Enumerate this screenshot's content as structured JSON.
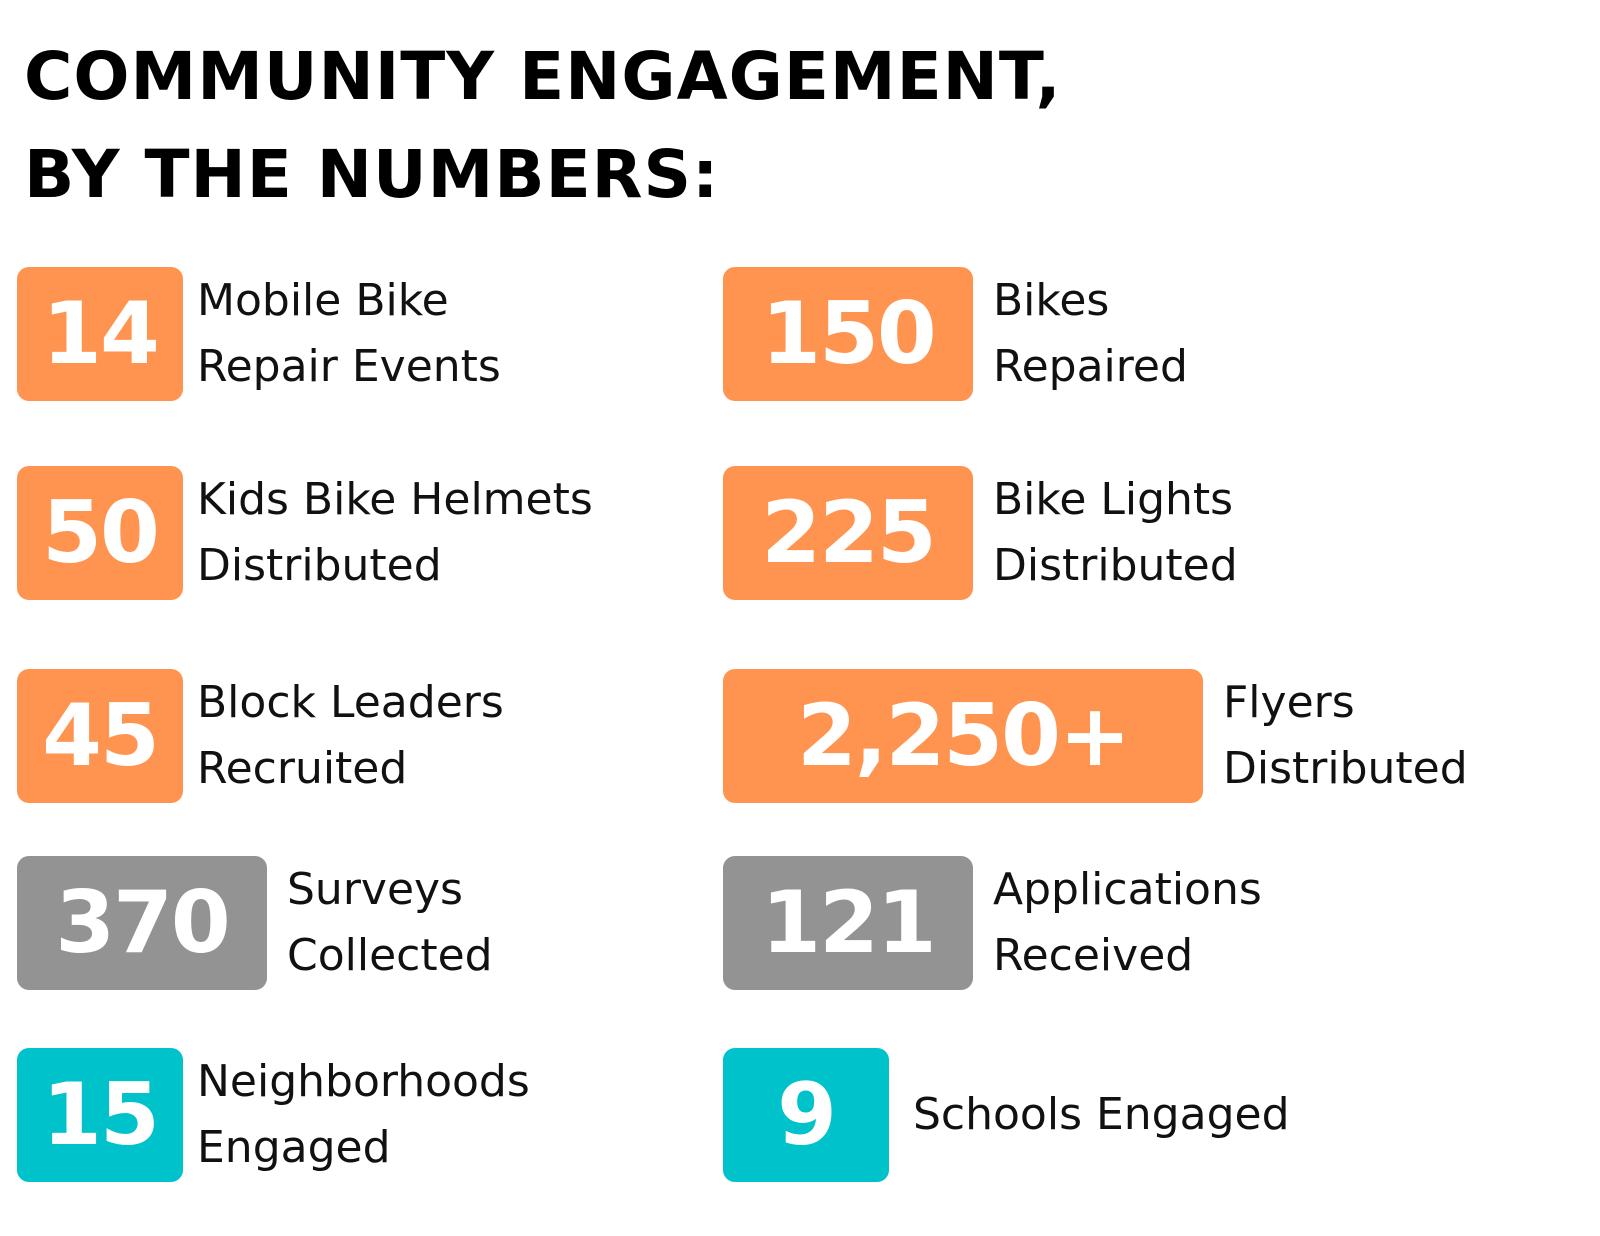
{
  "title": {
    "line1": "COMMUNITY ENGAGEMENT,",
    "line2": "BY THE NUMBERS:"
  },
  "colors": {
    "orange": "#FF9350",
    "gray": "#939393",
    "teal": "#00C2CB"
  },
  "stats": [
    {
      "value": "14",
      "line1": "Mobile Bike",
      "line2": "Repair Events",
      "color": "orange"
    },
    {
      "value": "150",
      "line1": "Bikes",
      "line2": "Repaired",
      "color": "orange"
    },
    {
      "value": "50",
      "line1": "Kids Bike Helmets",
      "line2": "Distributed",
      "color": "orange"
    },
    {
      "value": "225",
      "line1": "Bike Lights",
      "line2": "Distributed",
      "color": "orange"
    },
    {
      "value": "45",
      "line1": "Block Leaders",
      "line2": "Recruited",
      "color": "orange"
    },
    {
      "value": "2,250+",
      "line1": "Flyers",
      "line2": "Distributed",
      "color": "orange"
    },
    {
      "value": "370",
      "line1": "Surveys",
      "line2": "Collected",
      "color": "gray"
    },
    {
      "value": "121",
      "line1": "Applications",
      "line2": "Received",
      "color": "gray"
    },
    {
      "value": "15",
      "line1": "Neighborhoods",
      "line2": "Engaged",
      "color": "teal"
    },
    {
      "value": "9",
      "line1": "Schools Engaged",
      "line2": "",
      "color": "teal"
    }
  ]
}
